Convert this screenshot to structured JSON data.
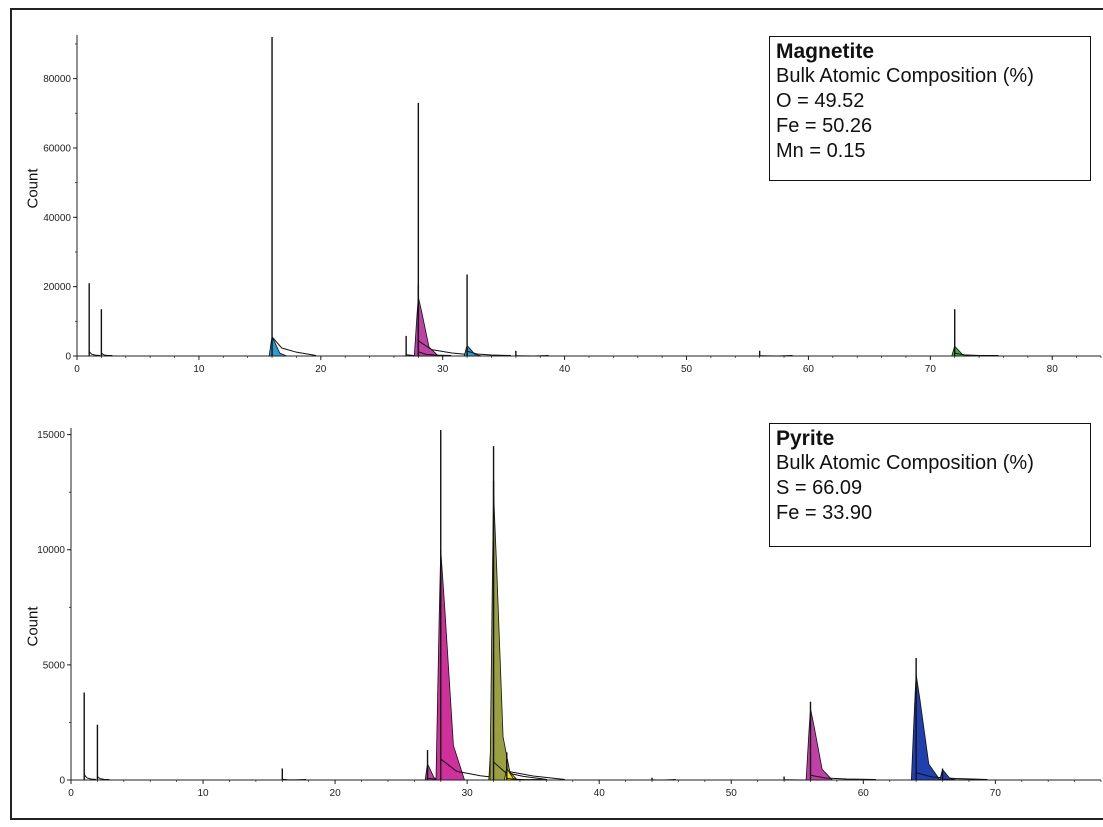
{
  "chart_data": [
    {
      "type": "line",
      "name": "magnetite-spectrum",
      "xlabel": "",
      "ylabel": "Count",
      "xlim": [
        0,
        84
      ],
      "ylim": [
        0,
        92000
      ],
      "xticks": [
        0,
        10,
        20,
        30,
        40,
        50,
        60,
        70,
        80
      ],
      "yticks": [
        0,
        20000,
        40000,
        60000,
        80000
      ],
      "legend": {
        "title": "Magnetite",
        "subtitle": "Bulk Atomic Composition (%)",
        "lines": [
          "O = 49.52",
          "Fe = 50.26",
          "Mn = 0.15"
        ]
      },
      "peaks": [
        {
          "x": 1.0,
          "y": 21000,
          "w": 0.1,
          "fill": "",
          "fill_h": 0
        },
        {
          "x": 2.0,
          "y": 13500,
          "w": 0.1,
          "fill": "",
          "fill_h": 0
        },
        {
          "x": 16.0,
          "y": 92000,
          "w": 0.4,
          "fill": "#2a9bd0",
          "fill_h": 5500
        },
        {
          "x": 27.0,
          "y": 5800,
          "w": 0.3,
          "fill": "",
          "fill_h": 0
        },
        {
          "x": 28.0,
          "y": 73000,
          "w": 0.55,
          "fill": "#c040a8",
          "fill_h": 17000
        },
        {
          "x": 28.0,
          "y": 20500,
          "w": 0.3,
          "fill": "",
          "fill_h": 0
        },
        {
          "x": 32.0,
          "y": 23500,
          "w": 0.4,
          "fill": "#2a9bd0",
          "fill_h": 3000
        },
        {
          "x": 36.0,
          "y": 1500,
          "w": 0.3,
          "fill": "",
          "fill_h": 0
        },
        {
          "x": 56.0,
          "y": 1500,
          "w": 0.3,
          "fill": "",
          "fill_h": 0
        },
        {
          "x": 72.0,
          "y": 13500,
          "w": 0.4,
          "fill": "#38b040",
          "fill_h": 2800
        }
      ]
    },
    {
      "type": "line",
      "name": "pyrite-spectrum",
      "xlabel": "",
      "ylabel": "Count",
      "xlim": [
        0,
        78
      ],
      "ylim": [
        0,
        15200
      ],
      "xticks": [
        0,
        10,
        20,
        30,
        40,
        50,
        60,
        70
      ],
      "yticks": [
        0,
        5000,
        10000,
        15000
      ],
      "legend": {
        "title": "Pyrite",
        "subtitle": "Bulk Atomic Composition (%)",
        "lines": [
          "S = 66.09",
          "Fe = 33.90"
        ]
      },
      "peaks": [
        {
          "x": 1.0,
          "y": 3800,
          "w": 0.1,
          "fill": "",
          "fill_h": 0
        },
        {
          "x": 2.0,
          "y": 2400,
          "w": 0.1,
          "fill": "",
          "fill_h": 0
        },
        {
          "x": 16.0,
          "y": 500,
          "w": 0.2,
          "fill": "",
          "fill_h": 0
        },
        {
          "x": 27.0,
          "y": 1300,
          "w": 0.3,
          "fill": "#c040a8",
          "fill_h": 700
        },
        {
          "x": 28.0,
          "y": 15200,
          "w": 0.6,
          "fill": "#d0309c",
          "fill_h": 10000
        },
        {
          "x": 32.0,
          "y": 14500,
          "w": 0.6,
          "fill": "#f0e000",
          "fill_h": 3400
        },
        {
          "x": 32.0,
          "y": 13000,
          "w": 0.45,
          "fill": "#9aa040",
          "fill_h": 12500
        },
        {
          "x": 33.0,
          "y": 1200,
          "w": 0.3,
          "fill": "#f0e000",
          "fill_h": 500
        },
        {
          "x": 44.0,
          "y": 100,
          "w": 0.2,
          "fill": "",
          "fill_h": 0
        },
        {
          "x": 54.0,
          "y": 150,
          "w": 0.3,
          "fill": "",
          "fill_h": 0
        },
        {
          "x": 56.0,
          "y": 3400,
          "w": 0.55,
          "fill": "#c040a8",
          "fill_h": 3100
        },
        {
          "x": 64.0,
          "y": 5300,
          "w": 0.6,
          "fill": "#2040b0",
          "fill_h": 4600
        },
        {
          "x": 66.0,
          "y": 500,
          "w": 0.35,
          "fill": "#2040b0",
          "fill_h": 450
        }
      ]
    }
  ]
}
